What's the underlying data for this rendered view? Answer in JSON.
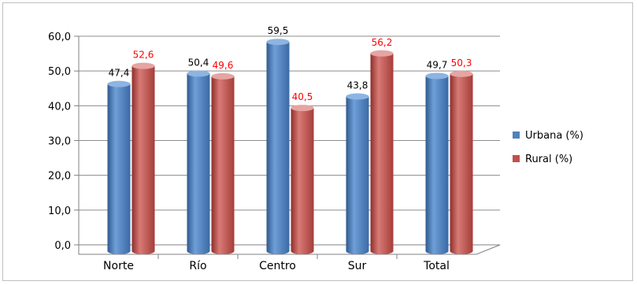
{
  "chart_data": {
    "type": "bar",
    "title": "",
    "xlabel": "",
    "ylabel": "",
    "categories": [
      "Norte",
      "Río",
      "Centro",
      "Sur",
      "Total"
    ],
    "series": [
      {
        "name": "Urbana (%)",
        "values": [
          47.4,
          50.4,
          59.5,
          43.8,
          49.7
        ],
        "labels": [
          "47,4",
          "50,4",
          "59,5",
          "43,8",
          "49,7"
        ],
        "color": "#4f81bd",
        "label_color": "#000000"
      },
      {
        "name": "Rural (%)",
        "values": [
          52.6,
          49.6,
          40.5,
          56.2,
          50.3
        ],
        "labels": [
          "52,6",
          "49,6",
          "40,5",
          "56,2",
          "50,3"
        ],
        "color": "#c0504d",
        "label_color": "#ff0000"
      }
    ],
    "ylim": [
      0,
      60
    ],
    "yticks": [
      0,
      10,
      20,
      30,
      40,
      50,
      60
    ],
    "ytick_labels": [
      "0,0",
      "10,0",
      "20,0",
      "30,0",
      "40,0",
      "50,0",
      "60,0"
    ],
    "grid": true,
    "legend_position": "right",
    "style": "3d-cylinder"
  }
}
